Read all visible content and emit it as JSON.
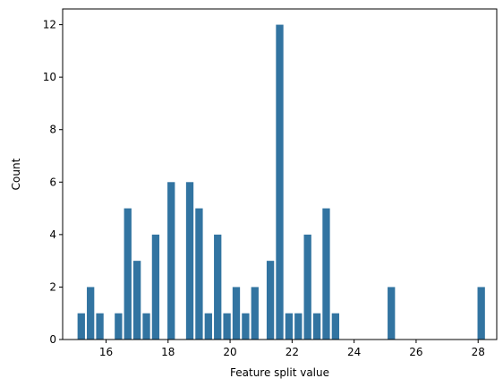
{
  "chart_data": {
    "type": "bar",
    "xlabel": "Feature split value",
    "ylabel": "Count",
    "xlim": [
      14.6,
      28.6
    ],
    "ylim": [
      0,
      12.6
    ],
    "x_ticks": [
      16,
      18,
      20,
      22,
      24,
      26,
      28
    ],
    "y_ticks": [
      0,
      2,
      4,
      6,
      8,
      10,
      12
    ],
    "grid": false,
    "bar_color": "#3274a1",
    "bars": [
      {
        "x": 15.2,
        "value": 1
      },
      {
        "x": 15.5,
        "value": 2
      },
      {
        "x": 15.8,
        "value": 1
      },
      {
        "x": 16.4,
        "value": 1
      },
      {
        "x": 16.7,
        "value": 5
      },
      {
        "x": 17.0,
        "value": 3
      },
      {
        "x": 17.3,
        "value": 1
      },
      {
        "x": 17.6,
        "value": 4
      },
      {
        "x": 18.1,
        "value": 6
      },
      {
        "x": 18.7,
        "value": 6
      },
      {
        "x": 19.0,
        "value": 5
      },
      {
        "x": 19.3,
        "value": 1
      },
      {
        "x": 19.6,
        "value": 4
      },
      {
        "x": 19.9,
        "value": 1
      },
      {
        "x": 20.2,
        "value": 2
      },
      {
        "x": 20.5,
        "value": 1
      },
      {
        "x": 20.8,
        "value": 2
      },
      {
        "x": 21.3,
        "value": 3
      },
      {
        "x": 21.6,
        "value": 12
      },
      {
        "x": 21.9,
        "value": 1
      },
      {
        "x": 22.2,
        "value": 1
      },
      {
        "x": 22.5,
        "value": 4
      },
      {
        "x": 22.8,
        "value": 1
      },
      {
        "x": 23.1,
        "value": 5
      },
      {
        "x": 23.4,
        "value": 1
      },
      {
        "x": 25.2,
        "value": 2
      },
      {
        "x": 28.1,
        "value": 2
      }
    ]
  }
}
